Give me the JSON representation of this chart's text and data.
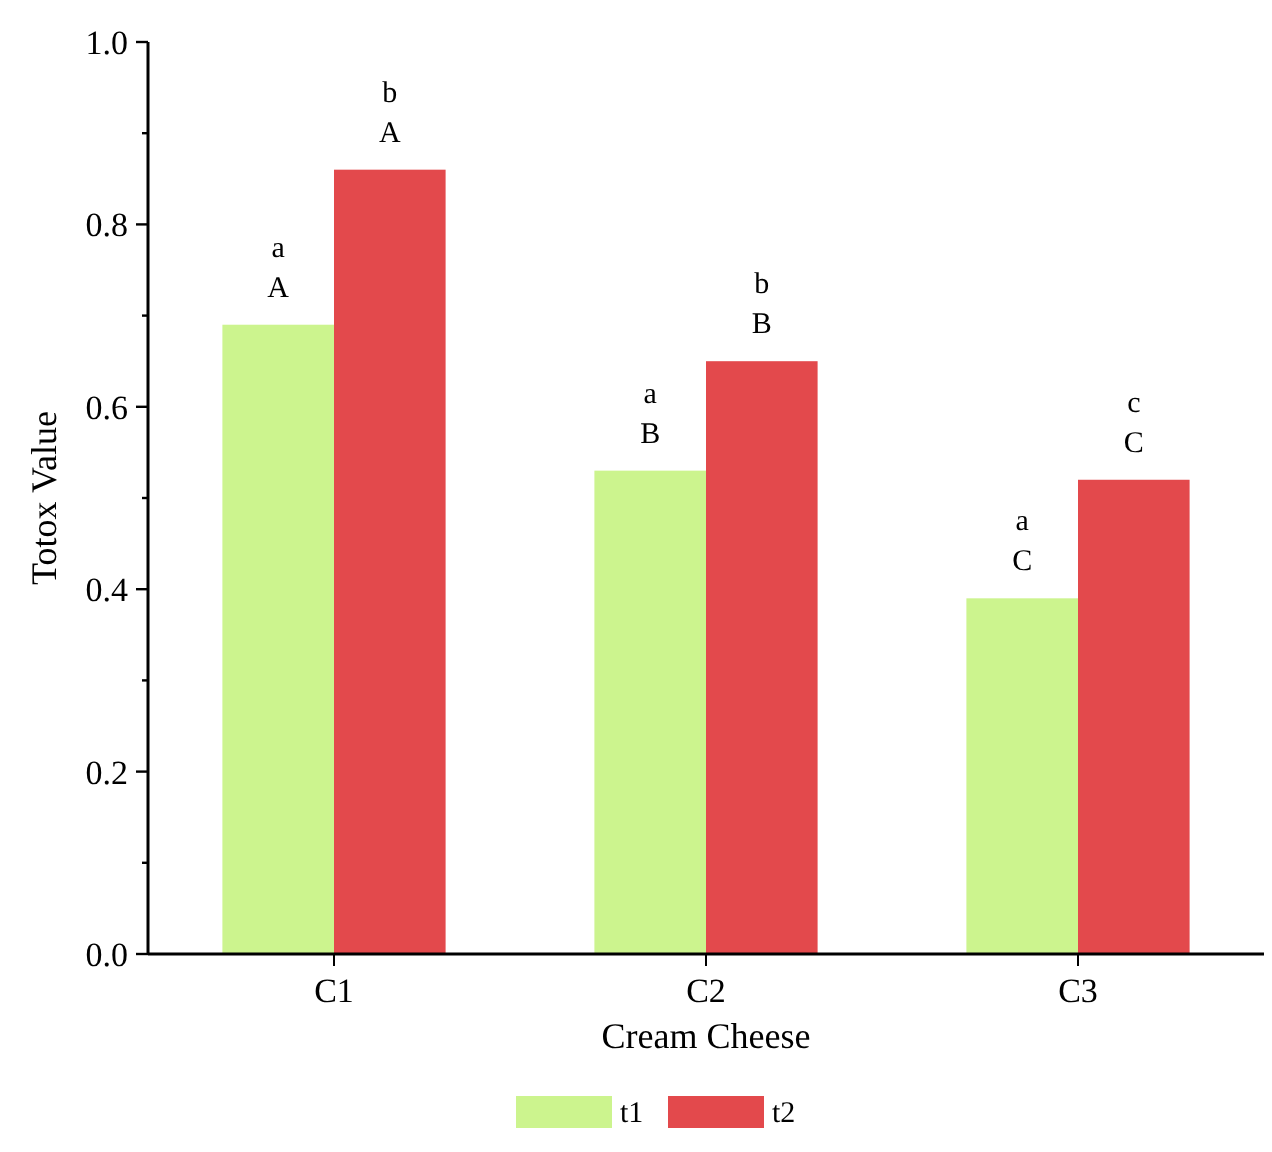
{
  "chart_data": {
    "type": "bar",
    "xlabel": "Cream Cheese",
    "ylabel": "Totox Value",
    "categories": [
      "C1",
      "C2",
      "C3"
    ],
    "series": [
      {
        "name": "t1",
        "color": "#ccf48e",
        "values": [
          0.69,
          0.53,
          0.39
        ]
      },
      {
        "name": "t2",
        "color": "#e3494c",
        "values": [
          0.86,
          0.65,
          0.52
        ]
      }
    ],
    "ylim": [
      0,
      1.0
    ],
    "yticks": [
      {
        "value": 0,
        "label": "0.0"
      },
      {
        "value": 0.1,
        "label": null
      },
      {
        "value": 0.2,
        "label": "0.2"
      },
      {
        "value": 0.3,
        "label": null
      },
      {
        "value": 0.4,
        "label": "0.4"
      },
      {
        "value": 0.5,
        "label": null
      },
      {
        "value": 0.6,
        "label": "0.6"
      },
      {
        "value": 0.7,
        "label": null
      },
      {
        "value": 0.8,
        "label": "0.8"
      },
      {
        "value": 0.9,
        "label": null
      },
      {
        "value": 1.0,
        "label": "1.0"
      }
    ],
    "annotations": [
      {
        "text": "a\nA",
        "x": "C1",
        "y": 0.69
      },
      {
        "text": "b\nA",
        "x": "C1",
        "y": 0.86
      },
      {
        "text": "a\nB",
        "x": "C2",
        "y": 0.53
      },
      {
        "text": "b\nB",
        "x": "C2",
        "y": 0.65
      },
      {
        "text": "a\nC",
        "x": "C3",
        "y": 0.39
      },
      {
        "text": "c\nC",
        "x": "C3",
        "y": 0.52
      }
    ],
    "grid": false,
    "legend": "bottom"
  }
}
